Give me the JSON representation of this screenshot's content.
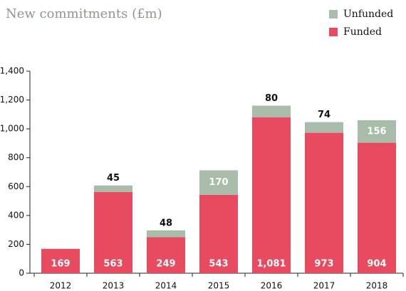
{
  "chart_data": {
    "type": "stacked_bar",
    "title": "New commitments (£m)",
    "categories": [
      "2012",
      "2013",
      "2014",
      "2015",
      "2016",
      "2017",
      "2018"
    ],
    "series": [
      {
        "name": "Funded",
        "color": "#e84a5f",
        "values": [
          169,
          563,
          249,
          543,
          1081,
          973,
          904
        ],
        "value_labels": [
          "169",
          "563",
          "249",
          "543",
          "1,081",
          "973",
          "904"
        ]
      },
      {
        "name": "Unfunded",
        "color": "#a9bba9",
        "values": [
          null,
          45,
          48,
          170,
          80,
          74,
          156
        ]
      }
    ],
    "ylim": [
      0,
      1400
    ],
    "yticks": [
      0,
      200,
      400,
      600,
      800,
      {
        "value": 1000,
        "label": "1,000"
      },
      {
        "value": 1200,
        "label": "1,200"
      },
      {
        "value": 1400,
        "label": "1,400"
      }
    ],
    "grid": false
  }
}
